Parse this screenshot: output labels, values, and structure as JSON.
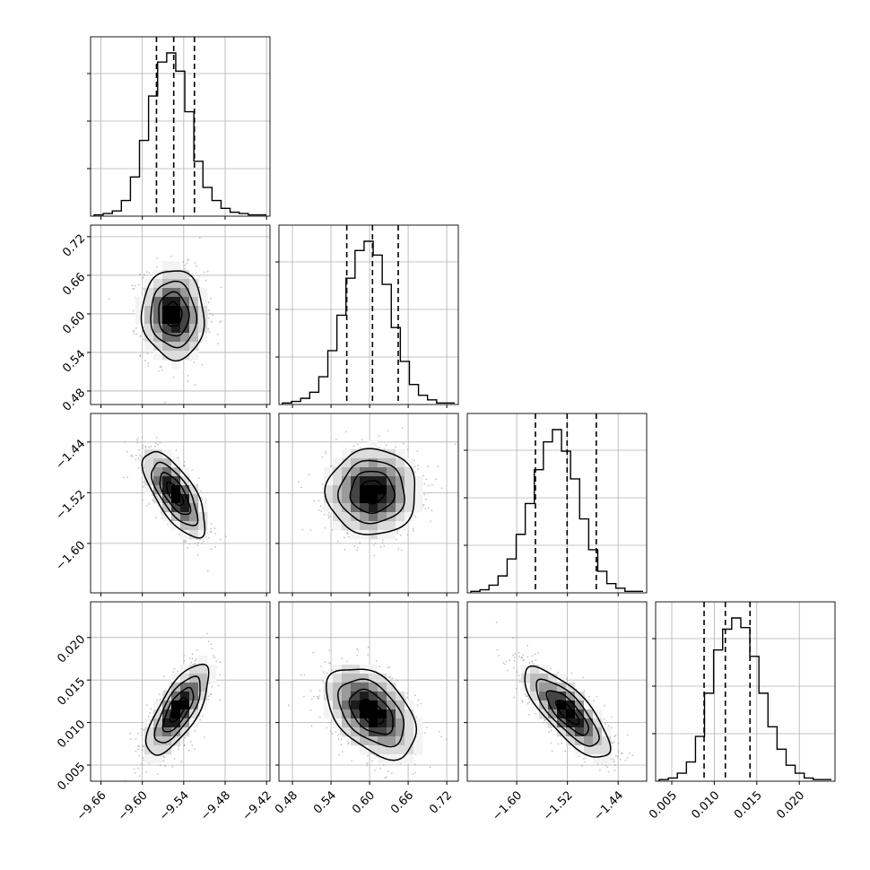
{
  "chart_data": {
    "type": "corner",
    "grid": true,
    "parameters": [
      {
        "ticks": [
          -9.66,
          -9.6,
          -9.54,
          -9.48,
          -9.42
        ],
        "tick_labels": [
          "−9.66",
          "−9.60",
          "−9.54",
          "−9.48",
          "−9.42"
        ],
        "range": [
          -9.675,
          -9.415
        ],
        "quantiles": [
          -9.5795,
          -9.5545,
          -9.5245
        ],
        "hist_counts": [
          1,
          2,
          4,
          12,
          30,
          58,
          92,
          118,
          125,
          111,
          80,
          42,
          22,
          12,
          6,
          3,
          2,
          1,
          1
        ]
      },
      {
        "ticks": [
          0.48,
          0.54,
          0.6,
          0.66,
          0.72
        ],
        "tick_labels": [
          "0.48",
          "0.54",
          "0.60",
          "0.66",
          "0.72"
        ],
        "range": [
          0.459,
          0.738
        ],
        "quantiles": [
          0.5645,
          0.6045,
          0.6445
        ],
        "hist_counts": [
          1,
          2,
          4,
          8,
          18,
          35,
          58,
          82,
          100,
          106,
          97,
          78,
          50,
          28,
          13,
          6,
          3,
          1,
          1
        ]
      },
      {
        "ticks": [
          -1.6,
          -1.52,
          -1.44
        ],
        "tick_labels": [
          "−1.60",
          "−1.52",
          "−1.44"
        ],
        "range": [
          -1.678,
          -1.395
        ],
        "quantiles": [
          -1.5705,
          -1.5205,
          -1.4745
        ],
        "hist_counts": [
          1,
          2,
          5,
          11,
          22,
          38,
          58,
          80,
          98,
          106,
          92,
          74,
          48,
          28,
          14,
          6,
          3,
          1,
          1
        ]
      },
      {
        "ticks": [
          0.005,
          0.01,
          0.015,
          0.02
        ],
        "tick_labels": [
          "0.005",
          "0.010",
          "0.015",
          "0.020"
        ],
        "range": [
          0.0031,
          0.0242
        ],
        "quantiles": [
          0.0088,
          0.0113,
          0.0142
        ],
        "hist_counts": [
          1,
          2,
          5,
          12,
          28,
          55,
          82,
          95,
          102,
          96,
          78,
          55,
          34,
          20,
          10,
          5,
          2,
          1,
          1
        ]
      }
    ],
    "pairs": [
      {
        "row": 1,
        "col": 0,
        "center": [
          -9.555,
          0.599
        ],
        "sd": [
          0.022,
          0.034
        ],
        "rho": -0.05
      },
      {
        "row": 2,
        "col": 0,
        "center": [
          -9.553,
          -1.522
        ],
        "sd": [
          0.022,
          0.033
        ],
        "rho": -0.7
      },
      {
        "row": 2,
        "col": 1,
        "center": [
          0.604,
          -1.519
        ],
        "sd": [
          0.034,
          0.033
        ],
        "rho": 0.0
      },
      {
        "row": 3,
        "col": 0,
        "center": [
          -9.548,
          0.0115
        ],
        "sd": [
          0.022,
          0.0026
        ],
        "rho": 0.72
      },
      {
        "row": 3,
        "col": 1,
        "center": [
          0.603,
          0.0112
        ],
        "sd": [
          0.034,
          0.0026
        ],
        "rho": -0.45
      },
      {
        "row": 3,
        "col": 2,
        "center": [
          -1.52,
          0.0112
        ],
        "sd": [
          0.033,
          0.0026
        ],
        "rho": -0.78
      }
    ],
    "diag_yticks": 3
  }
}
